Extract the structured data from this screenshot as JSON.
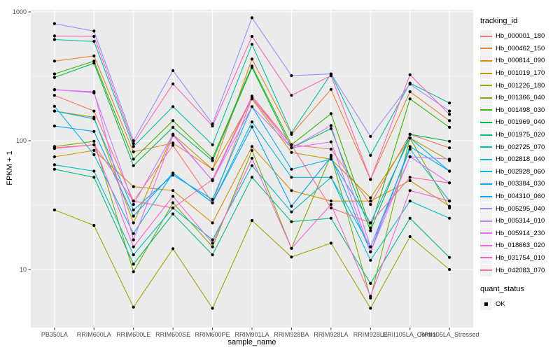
{
  "chart_data": {
    "type": "line",
    "title": "",
    "xlabel": "sample_name",
    "ylabel": "FPKM + 1",
    "y_scale": "log10",
    "y_ticks": [
      10,
      100,
      1000
    ],
    "y_minor_ticks": [
      31.6,
      316
    ],
    "ylim": [
      3.5,
      1040
    ],
    "grid": "on",
    "legend_position": "right",
    "panel_bg": "#EBEBEB",
    "grid_color": "#FFFFFF",
    "point_color": "#000000",
    "tick_label_color": "#4D4D4D",
    "x_categories": [
      "PB350LA",
      "RRIM600LA",
      "RRIM600LE",
      "RRIM600SE",
      "RRIM600PE",
      "RRIM901LA",
      "RRIM928BA",
      "RRIM928LA",
      "RRIM928LE",
      "RRII105LA_Control",
      "RRII105LA_Stressed"
    ],
    "series": [
      {
        "name": "Hb_000001_180",
        "color": "#F8766D",
        "values": [
          225,
          170,
          34,
          92,
          33,
          215,
          93,
          86,
          32,
          112,
          88
        ]
      },
      {
        "name": "Hb_000462_150",
        "color": "#EA8331",
        "values": [
          415,
          455,
          82,
          96,
          60,
          430,
          112,
          250,
          50,
          240,
          143
        ]
      },
      {
        "name": "Hb_000814_090",
        "color": "#D89000",
        "values": [
          75,
          84,
          44,
          41,
          23,
          90,
          41,
          34,
          34,
          49,
          31
        ]
      },
      {
        "name": "Hb_001019_170",
        "color": "#C09B00",
        "values": [
          170,
          152,
          23,
          112,
          60,
          211,
          81,
          72,
          36,
          105,
          70
        ]
      },
      {
        "name": "Hb_001226_180",
        "color": "#A3A500",
        "values": [
          29,
          22,
          5.1,
          14.5,
          5,
          24,
          12.5,
          16,
          5,
          18,
          10
        ]
      },
      {
        "name": "Hb_001366_040",
        "color": "#7CAE00",
        "values": [
          90,
          99,
          9.6,
          33,
          15,
          84,
          14.6,
          77,
          6,
          105,
          30
        ]
      },
      {
        "name": "Hb_001498_030",
        "color": "#39B600",
        "values": [
          330,
          415,
          72,
          143,
          73,
          380,
          93,
          162,
          21,
          211,
          127
        ]
      },
      {
        "name": "Hb_001969_040",
        "color": "#00BB4E",
        "values": [
          310,
          400,
          64,
          127,
          70,
          370,
          88,
          124,
          20,
          112,
          99
        ]
      },
      {
        "name": "Hb_001975_020",
        "color": "#00BF7D",
        "values": [
          60,
          52,
          11,
          27,
          13,
          52,
          23.5,
          25,
          7.8,
          25,
          12.4
        ]
      },
      {
        "name": "Hb_002725_070",
        "color": "#00C1A3",
        "values": [
          610,
          590,
          90,
          184,
          93,
          560,
          115,
          330,
          77,
          280,
          196
        ]
      },
      {
        "name": "Hb_002818_040",
        "color": "#00BFC4",
        "values": [
          65,
          58,
          13,
          30,
          17,
          64,
          28,
          52,
          11.8,
          34,
          25
        ]
      },
      {
        "name": "Hb_002928_060",
        "color": "#00BAE0",
        "values": [
          185,
          78,
          19,
          56,
          33,
          140,
          52,
          52,
          15,
          86,
          34
        ]
      },
      {
        "name": "Hb_003384_030",
        "color": "#00B0F6",
        "values": [
          170,
          148,
          29,
          54,
          35,
          184,
          60,
          72,
          23,
          105,
          58
        ]
      },
      {
        "name": "Hb_004310_060",
        "color": "#00A5FF",
        "values": [
          130,
          118,
          26,
          56,
          33,
          128,
          31,
          75,
          13.7,
          90,
          58
        ]
      },
      {
        "name": "Hb_005295_040",
        "color": "#9590FF",
        "values": [
          810,
          710,
          100,
          350,
          135,
          900,
          320,
          330,
          108,
          275,
          170
        ]
      },
      {
        "name": "Hb_005314_010",
        "color": "#C77CFF",
        "values": [
          250,
          235,
          32,
          112,
          49,
          184,
          88,
          131,
          15,
          75,
          72
        ]
      },
      {
        "name": "Hb_005914_230",
        "color": "#E76BF3",
        "values": [
          248,
          240,
          17,
          110,
          49,
          215,
          88,
          98,
          13.7,
          75,
          47
        ]
      },
      {
        "name": "Hb_018663_020",
        "color": "#FA62DB",
        "values": [
          87,
          93,
          15,
          37,
          16,
          73,
          14.6,
          32,
          6.2,
          41,
          34
        ]
      },
      {
        "name": "Hb_031754_010",
        "color": "#FF62BC",
        "values": [
          650,
          645,
          95,
          276,
          130,
          645,
          225,
          320,
          50,
          325,
          160
        ]
      },
      {
        "name": "Hb_042083_070",
        "color": "#FF6A98",
        "values": [
          88,
          93,
          34,
          30,
          50,
          222,
          93,
          30,
          23,
          52,
          47
        ]
      }
    ]
  },
  "legend": {
    "tracking_title": "tracking_id",
    "quant_title": "quant_status",
    "quant_items": [
      {
        "label": "OK"
      }
    ]
  }
}
